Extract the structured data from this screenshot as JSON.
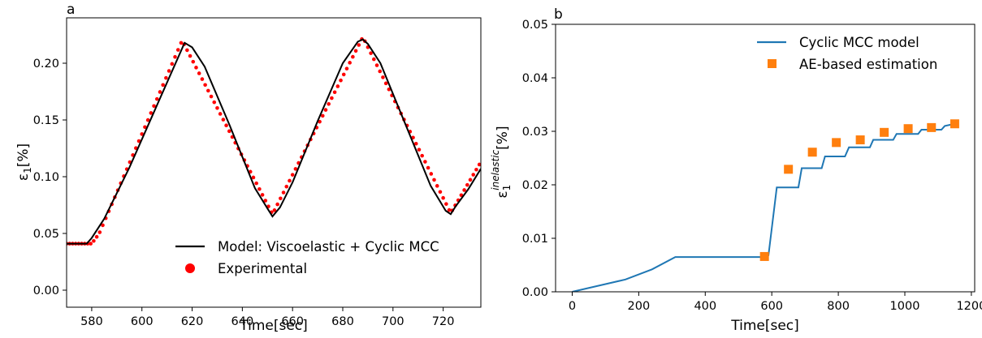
{
  "chart_data": [
    {
      "panel_label": "a",
      "type": "line",
      "title": "",
      "xlabel": "Time[sec]",
      "ylabel": "ε1[%]",
      "ylabel_main": "ε",
      "ylabel_sub": "1",
      "ylabel_suffix": "[%]",
      "xlim": [
        570,
        735
      ],
      "ylim": [
        -0.015,
        0.24
      ],
      "xticks": [
        580,
        600,
        620,
        640,
        660,
        680,
        700,
        720
      ],
      "yticks": [
        0.0,
        0.05,
        0.1,
        0.15,
        0.2
      ],
      "ytick_labels": [
        "0.00",
        "0.05",
        "0.10",
        "0.15",
        "0.20"
      ],
      "grid": false,
      "legend_position": "lower-right",
      "series": [
        {
          "name": "Model: Viscoelastic  + Cyclic MCC",
          "style": "line",
          "color": "#000000",
          "x": [
            570,
            578,
            580,
            585,
            595,
            605,
            613,
            617,
            620,
            625,
            635,
            645,
            650,
            652,
            655,
            660,
            670,
            680,
            686,
            688,
            690,
            695,
            705,
            715,
            721,
            723,
            725,
            730,
            735
          ],
          "y": [
            0.041,
            0.041,
            0.046,
            0.063,
            0.108,
            0.158,
            0.198,
            0.218,
            0.214,
            0.197,
            0.145,
            0.09,
            0.072,
            0.065,
            0.073,
            0.095,
            0.149,
            0.2,
            0.219,
            0.221,
            0.217,
            0.2,
            0.146,
            0.092,
            0.07,
            0.067,
            0.074,
            0.089,
            0.107
          ]
        },
        {
          "name": "Experimental",
          "style": "scatter",
          "color": "#ff0000",
          "x_start": 570,
          "x_step": 1.2,
          "x_end": 735,
          "keypoints": [
            [
              570,
              0.041
            ],
            [
              580,
              0.041
            ],
            [
              583,
              0.05
            ],
            [
              616,
              0.22
            ],
            [
              652,
              0.067
            ],
            [
              688,
              0.223
            ],
            [
              723,
              0.068
            ],
            [
              735,
              0.113
            ]
          ]
        }
      ]
    },
    {
      "panel_label": "b",
      "type": "line",
      "title": "",
      "xlabel": "Time[sec]",
      "ylabel": "ε1inelastic[%]",
      "ylabel_main": "ε",
      "ylabel_sub": "1",
      "ylabel_sup": "inelastic",
      "ylabel_suffix": "[%]",
      "xlim": [
        -50,
        1210
      ],
      "ylim": [
        0.0,
        0.05
      ],
      "xticks": [
        0,
        200,
        400,
        600,
        800,
        1000,
        1200
      ],
      "yticks": [
        0.0,
        0.01,
        0.02,
        0.03,
        0.04,
        0.05
      ],
      "ytick_labels": [
        "0.00",
        "0.01",
        "0.02",
        "0.03",
        "0.04",
        "0.05"
      ],
      "grid": false,
      "legend_position": "upper-right",
      "series": [
        {
          "name": "Cyclic MCC model",
          "style": "line",
          "color": "#1f77b4",
          "x": [
            0,
            160,
            240,
            310,
            580,
            590,
            615,
            680,
            690,
            750,
            760,
            820,
            832,
            895,
            905,
            965,
            975,
            1040,
            1050,
            1110,
            1120,
            1150
          ],
          "y": [
            0.0,
            0.0023,
            0.0042,
            0.0065,
            0.0065,
            0.0068,
            0.0195,
            0.0195,
            0.0231,
            0.0231,
            0.0253,
            0.0253,
            0.027,
            0.027,
            0.0284,
            0.0284,
            0.0295,
            0.0295,
            0.0303,
            0.0303,
            0.031,
            0.0314
          ]
        },
        {
          "name": "AE-based estimation",
          "style": "scatter",
          "color": "#ff7f0e",
          "x": [
            578,
            650,
            722,
            794,
            866,
            938,
            1010,
            1080,
            1150
          ],
          "y": [
            0.0066,
            0.0229,
            0.0261,
            0.0279,
            0.0284,
            0.0298,
            0.0305,
            0.0307,
            0.0314
          ]
        }
      ]
    }
  ]
}
